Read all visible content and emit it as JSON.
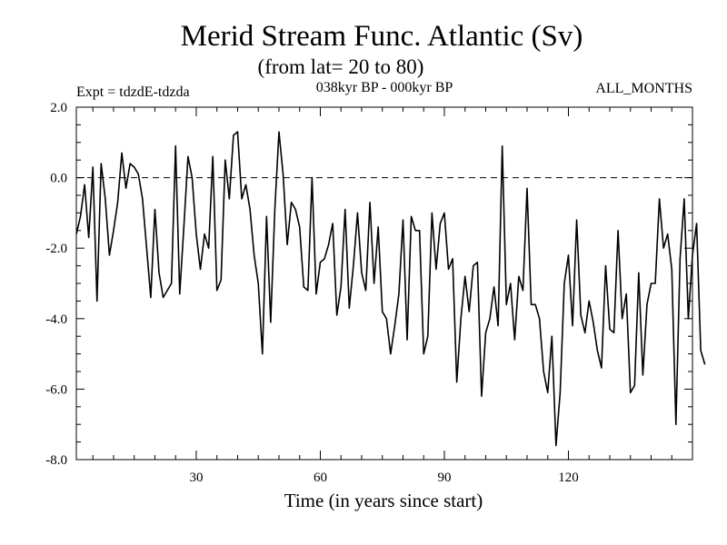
{
  "chart_data": {
    "type": "line",
    "title": "Merid Stream Func. Atlantic (Sv)",
    "subtitle": "(from lat= 20 to 80)",
    "experiment": "Expt = tdzdE-tdzda",
    "period": "038kyr BP - 000kyr BP",
    "months": "ALL_MONTHS",
    "xlabel": "Time (in years since start)",
    "ylabel": "",
    "xlim": [
      1,
      150
    ],
    "ylim": [
      -8,
      2
    ],
    "x_ticks": [
      30,
      60,
      90,
      120
    ],
    "x_tick_labels": [
      "30",
      "60",
      "90",
      "120"
    ],
    "y_ticks": [
      2,
      0,
      -2,
      -4,
      -6,
      -8
    ],
    "y_tick_labels": [
      "2.0",
      "0.0",
      "-2.0",
      "-4.0",
      "-6.0",
      "-8.0"
    ],
    "zero_line": "dashed",
    "grid": false,
    "series": [
      {
        "name": "Merid Stream Func.",
        "x_start": 1,
        "x_step": 1,
        "values": [
          -1.6,
          -1.1,
          -0.2,
          -1.7,
          0.3,
          -3.5,
          0.4,
          -0.6,
          -2.2,
          -1.5,
          -0.7,
          0.7,
          -0.3,
          0.4,
          0.3,
          0.1,
          -0.6,
          -2.0,
          -3.4,
          -0.9,
          -2.7,
          -3.4,
          -3.2,
          -3.0,
          0.9,
          -3.3,
          -1.4,
          0.6,
          0.0,
          -1.6,
          -2.6,
          -1.6,
          -2.0,
          0.6,
          -3.2,
          -2.9,
          0.5,
          -0.6,
          1.2,
          1.3,
          -0.6,
          -0.2,
          -0.9,
          -2.2,
          -3.0,
          -5.0,
          -1.1,
          -4.1,
          -0.9,
          1.3,
          0.1,
          -1.9,
          -0.7,
          -0.9,
          -1.4,
          -3.1,
          -3.2,
          0.0,
          -3.3,
          -2.4,
          -2.3,
          -1.9,
          -1.3,
          -3.9,
          -3.1,
          -0.9,
          -3.7,
          -2.5,
          -1.0,
          -2.7,
          -3.2,
          -0.7,
          -3.0,
          -1.4,
          -3.8,
          -4.0,
          -5.0,
          -4.2,
          -3.3,
          -1.2,
          -4.6,
          -1.1,
          -1.5,
          -1.5,
          -5.0,
          -4.5,
          -1.0,
          -2.6,
          -1.3,
          -1.0,
          -2.6,
          -2.3,
          -5.8,
          -4.0,
          -2.8,
          -3.8,
          -2.5,
          -2.4,
          -6.2,
          -4.4,
          -4.0,
          -3.1,
          -4.2,
          0.9,
          -3.6,
          -3.0,
          -4.6,
          -2.8,
          -3.2,
          -0.3,
          -3.6,
          -3.6,
          -4.0,
          -5.5,
          -6.1,
          -4.5,
          -7.6,
          -6.1,
          -3.0,
          -2.2,
          -4.2,
          -1.2,
          -3.9,
          -4.4,
          -3.5,
          -4.1,
          -4.9,
          -5.4,
          -2.5,
          -4.3,
          -4.4,
          -1.5,
          -4.0,
          -3.3,
          -6.1,
          -5.9,
          -2.7,
          -5.6,
          -3.6,
          -3.0,
          -3.0,
          -0.6,
          -2.0,
          -1.6,
          -2.6,
          -7.0,
          -2.3,
          -0.6,
          -4.0,
          -2.2,
          -1.3,
          -4.9,
          -5.3
        ]
      }
    ]
  }
}
